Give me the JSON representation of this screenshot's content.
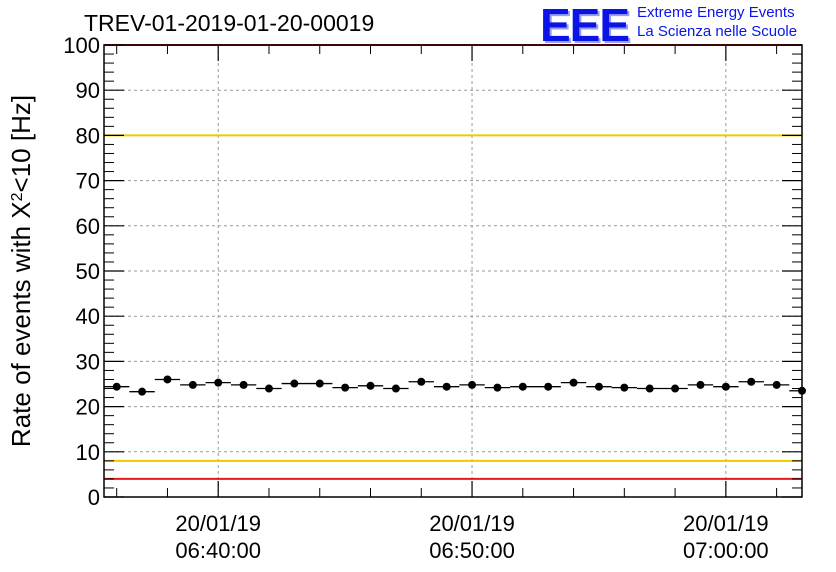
{
  "chart_data": {
    "type": "scatter",
    "title": "TREV-01-2019-01-20-00019",
    "logo": {
      "text": "EEE",
      "line1": "Extreme Energy Events",
      "line2": "La Scienza nelle Scuole"
    },
    "ylabel_main": "Rate of events with X",
    "ylabel_sup": "2",
    "ylabel_tail": "<10 [Hz]",
    "ylim": [
      0,
      100
    ],
    "yticks": [
      0,
      10,
      20,
      30,
      40,
      50,
      60,
      70,
      80,
      90,
      100
    ],
    "ytick_labels": [
      "0",
      "10",
      "20",
      "30",
      "40",
      "50",
      "60",
      "70",
      "80",
      "90",
      "100"
    ],
    "xlim_minutes": [
      0,
      27.5
    ],
    "xticks": [
      {
        "t": 4.5,
        "date": "20/01/19",
        "time": "06:40:00"
      },
      {
        "t": 14.5,
        "date": "20/01/19",
        "time": "06:50:00"
      },
      {
        "t": 24.5,
        "date": "20/01/19",
        "time": "07:00:00"
      }
    ],
    "x_minor_step_minutes": 2,
    "grid": true,
    "reference_lines": [
      {
        "y": 100,
        "color": "#e8181c"
      },
      {
        "y": 80,
        "color": "#f2c800"
      },
      {
        "y": 8,
        "color": "#f2c800"
      },
      {
        "y": 4,
        "color": "#e8181c"
      }
    ],
    "bin_width_minutes": 1,
    "series": [
      {
        "name": "rate",
        "marker_color": "#000000",
        "x": [
          0.5,
          1.5,
          2.5,
          3.5,
          4.5,
          5.5,
          6.5,
          7.5,
          8.5,
          9.5,
          10.5,
          11.5,
          12.5,
          13.5,
          14.5,
          15.5,
          16.5,
          17.5,
          18.5,
          19.5,
          20.5,
          21.5,
          22.5,
          23.5,
          24.5,
          25.5,
          26.5,
          27.5
        ],
        "values": [
          24.4,
          23.3,
          26.0,
          24.8,
          25.3,
          24.8,
          24.0,
          25.1,
          25.1,
          24.2,
          24.6,
          24.0,
          25.5,
          24.4,
          24.8,
          24.2,
          24.4,
          24.4,
          25.3,
          24.4,
          24.2,
          24.0,
          24.0,
          24.8,
          24.4,
          25.5,
          24.8,
          23.5
        ]
      }
    ]
  }
}
